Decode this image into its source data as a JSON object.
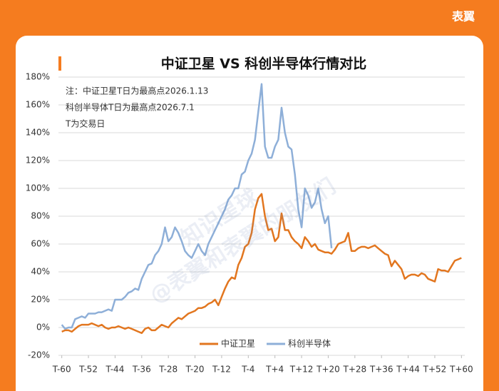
{
  "brand": "表翼",
  "watermark": [
    "知识星球",
    "@表翼和表翼的朋友们"
  ],
  "chart_data": {
    "type": "line",
    "title": "中证卫星 VS 科创半导体行情对比",
    "annotations": [
      "注：中证卫星T日为最高点2026.1.13",
      "科创半导体T日为最高点2026.7.1",
      "T为交易日"
    ],
    "x": [
      -60,
      -59,
      -58,
      -57,
      -56,
      -55,
      -54,
      -53,
      -52,
      -51,
      -50,
      -49,
      -48,
      -47,
      -46,
      -45,
      -44,
      -43,
      -42,
      -41,
      -40,
      -39,
      -38,
      -37,
      -36,
      -35,
      -34,
      -33,
      -32,
      -31,
      -30,
      -29,
      -28,
      -27,
      -26,
      -25,
      -24,
      -23,
      -22,
      -21,
      -20,
      -19,
      -18,
      -17,
      -16,
      -15,
      -14,
      -13,
      -12,
      -11,
      -10,
      -9,
      -8,
      -7,
      -6,
      -5,
      -4,
      -3,
      -2,
      -1,
      0,
      1,
      2,
      3,
      4,
      5,
      6,
      7,
      8,
      9,
      10,
      11,
      12,
      13,
      14,
      15,
      16,
      17,
      18,
      19,
      20,
      21,
      22,
      23,
      24,
      25,
      26,
      27,
      28,
      29,
      30,
      31,
      32,
      33,
      34,
      35,
      36,
      37,
      38,
      39,
      40,
      41,
      42,
      43,
      44,
      45,
      46,
      47,
      48,
      49,
      50,
      51,
      52,
      53,
      54,
      55,
      56,
      57,
      58,
      59,
      60
    ],
    "series": [
      {
        "name": "中证卫星",
        "color": "#e2761f",
        "values": [
          -3,
          -2,
          -2,
          -3,
          -1,
          1,
          2,
          2,
          2,
          3,
          2,
          1,
          2,
          0,
          -1,
          0,
          0,
          1,
          0,
          -1,
          0,
          -1,
          -2,
          -3,
          -4,
          -1,
          0,
          -2,
          -2,
          0,
          2,
          1,
          0,
          3,
          5,
          7,
          6,
          8,
          10,
          11,
          12,
          14,
          14,
          15,
          17,
          18,
          20,
          16,
          22,
          28,
          33,
          36,
          35,
          45,
          50,
          58,
          60,
          68,
          85,
          93,
          96,
          80,
          70,
          71,
          62,
          65,
          82,
          70,
          70,
          65,
          62,
          60,
          57,
          65,
          62,
          58,
          60,
          56,
          55,
          54,
          54,
          53,
          56,
          60,
          61,
          62,
          68,
          55,
          55,
          57,
          58,
          58,
          57,
          58,
          59,
          57,
          55,
          53,
          52,
          44,
          48,
          45,
          42,
          35,
          37,
          38,
          38,
          37,
          39,
          38,
          35,
          34,
          33,
          42,
          41,
          41,
          40,
          44,
          48,
          49,
          50
        ]
      },
      {
        "name": "科创半导体",
        "color": "#8eafd8",
        "values": [
          2,
          -1,
          0,
          0,
          6,
          7,
          8,
          7,
          10,
          10,
          10,
          11,
          11,
          12,
          13,
          12,
          20,
          20,
          20,
          22,
          25,
          26,
          28,
          27,
          35,
          40,
          45,
          46,
          52,
          55,
          60,
          72,
          62,
          65,
          72,
          68,
          62,
          55,
          52,
          50,
          55,
          60,
          55,
          52,
          60,
          65,
          70,
          75,
          80,
          85,
          92,
          95,
          100,
          100,
          110,
          112,
          120,
          125,
          135,
          155,
          175,
          130,
          122,
          122,
          130,
          135,
          158,
          140,
          130,
          128,
          110,
          85,
          72,
          100,
          95,
          86,
          90,
          100,
          85,
          75,
          80,
          57,
          null,
          null,
          null,
          null,
          null,
          null,
          null,
          null,
          null,
          null,
          null,
          null,
          null,
          null,
          null,
          null,
          null,
          null,
          null,
          null,
          null,
          null,
          null,
          null,
          null,
          null,
          null,
          null,
          null,
          null,
          null,
          null,
          null,
          null,
          null,
          null,
          null,
          null,
          null
        ]
      }
    ],
    "xlim": [
      -61,
      61
    ],
    "xticks": [
      {
        "value": -60,
        "label": "T-60"
      },
      {
        "value": -52,
        "label": "T-52"
      },
      {
        "value": -44,
        "label": "T-44"
      },
      {
        "value": -36,
        "label": "T-36"
      },
      {
        "value": -28,
        "label": "T-28"
      },
      {
        "value": -20,
        "label": "T-20"
      },
      {
        "value": -12,
        "label": "T-12"
      },
      {
        "value": -4,
        "label": "T-4"
      },
      {
        "value": 4,
        "label": "T+4"
      },
      {
        "value": 12,
        "label": "T+12"
      },
      {
        "value": 20,
        "label": "T+20"
      },
      {
        "value": 28,
        "label": "T+28"
      },
      {
        "value": 36,
        "label": "T+36"
      },
      {
        "value": 44,
        "label": "T+44"
      },
      {
        "value": 52,
        "label": "T+52"
      },
      {
        "value": 60,
        "label": "T+60"
      }
    ],
    "ylim": [
      -20,
      180
    ],
    "yticks": [
      {
        "value": -20,
        "label": "-20%"
      },
      {
        "value": 0,
        "label": "0%"
      },
      {
        "value": 20,
        "label": "20%"
      },
      {
        "value": 40,
        "label": "40%"
      },
      {
        "value": 60,
        "label": "60%"
      },
      {
        "value": 80,
        "label": "80%"
      },
      {
        "value": 100,
        "label": "100%"
      },
      {
        "value": 120,
        "label": "120%"
      },
      {
        "value": 140,
        "label": "140%"
      },
      {
        "value": 160,
        "label": "160%"
      },
      {
        "value": 180,
        "label": "180%"
      }
    ],
    "grid": true,
    "legend": "bottom"
  }
}
